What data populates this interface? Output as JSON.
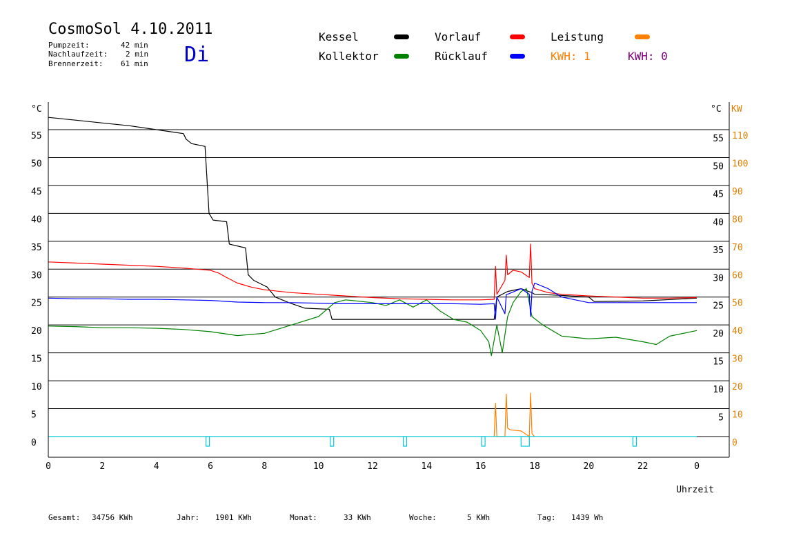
{
  "header": {
    "title": "CosmoSol 4.10.2011",
    "day": "Di",
    "stats": [
      {
        "label": "Pumpzeit:",
        "value": "42 min"
      },
      {
        "label": "Nachlaufzeit:",
        "value": "2 min"
      },
      {
        "label": "Brennerzeit:",
        "value": "61 min"
      }
    ]
  },
  "legend": {
    "items": [
      {
        "label": "Kessel",
        "color": "#000000"
      },
      {
        "label": "Kollektor",
        "color": "#008000"
      },
      {
        "label": "Vorlauf",
        "color": "#ff0000"
      },
      {
        "label": "Rücklauf",
        "color": "#0000ff"
      },
      {
        "label": "Leistung",
        "color": "#ff8000"
      }
    ],
    "kwh1": "KWH: 1",
    "kwh0": "KWH: 0",
    "kwh1_color": "#ff8000",
    "kwh0_color": "#800080"
  },
  "footer": {
    "items": [
      {
        "label": "Gesamt:",
        "value": "34756 KWh"
      },
      {
        "label": "Jahr:",
        "value": "1901 KWh"
      },
      {
        "label": "Monat:",
        "value": "33 KWh"
      },
      {
        "label": "Woche:",
        "value": "5 KWh"
      },
      {
        "label": "Tag:",
        "value": "1439 Wh"
      }
    ]
  },
  "chart_data": {
    "type": "line",
    "xlabel": "Uhrzeit",
    "ylabel_left": "°C",
    "ylabel_right_temp": "°C",
    "ylabel_right_power": "KW",
    "xlim": [
      0,
      24
    ],
    "ylim": [
      0,
      55
    ],
    "y2lim": [
      0,
      110
    ],
    "x_ticks": [
      "0",
      "2",
      "4",
      "6",
      "8",
      "10",
      "12",
      "14",
      "16",
      "18",
      "20",
      "22",
      "0"
    ],
    "y_ticks": [
      0,
      5,
      10,
      15,
      20,
      25,
      30,
      35,
      40,
      45,
      50,
      55
    ],
    "y2_ticks": [
      0,
      10,
      20,
      30,
      40,
      50,
      60,
      70,
      80,
      90,
      100,
      110
    ],
    "grid": true,
    "series": [
      {
        "name": "Kessel",
        "color": "#000000",
        "x": [
          0,
          1,
          2,
          3,
          4,
          5,
          5.1,
          5.3,
          5.8,
          5.95,
          6.1,
          6.6,
          6.7,
          7.3,
          7.4,
          7.6,
          8.1,
          8.4,
          8.9,
          9.5,
          10.4,
          10.5,
          12,
          14,
          16,
          16.5,
          16.6,
          17,
          17.5,
          17.9,
          18,
          19,
          20,
          20.2,
          22,
          24
        ],
        "y": [
          57.2,
          56.7,
          56.2,
          55.7,
          55.0,
          54.3,
          53.3,
          52.5,
          52.0,
          40,
          38.8,
          38.5,
          34.5,
          33.8,
          29,
          28,
          26.8,
          25.0,
          24.0,
          23.0,
          22.8,
          21.0,
          21.0,
          21.0,
          21.0,
          21.0,
          25.0,
          26.0,
          26.5,
          25.8,
          25.5,
          25.3,
          25.0,
          24.2,
          24.3,
          24.8
        ]
      },
      {
        "name": "Kollektor",
        "color": "#008000",
        "x": [
          0,
          1,
          2,
          3,
          4,
          5,
          6,
          7,
          8,
          9,
          10,
          10.6,
          11,
          12,
          12.5,
          13,
          13.5,
          14,
          14.5,
          15,
          15.5,
          16,
          16.3,
          16.4,
          16.6,
          16.8,
          17,
          17.2,
          17.5,
          17.7,
          17.9,
          18.3,
          19,
          20,
          21,
          22,
          22.5,
          23,
          24
        ],
        "y": [
          19.8,
          19.7,
          19.5,
          19.5,
          19.4,
          19.2,
          18.8,
          18.1,
          18.5,
          20.0,
          21.5,
          24.0,
          24.5,
          24.0,
          23.5,
          24.5,
          23.2,
          24.5,
          22.5,
          21.0,
          20.5,
          19.0,
          17.0,
          14.5,
          20.0,
          15.0,
          21.5,
          24.0,
          26.0,
          26.5,
          21.5,
          20.0,
          18.0,
          17.5,
          17.8,
          17.0,
          16.5,
          18.0,
          19.0
        ]
      },
      {
        "name": "Vorlauf",
        "color": "#ff0000",
        "x": [
          0,
          1,
          2,
          3,
          4,
          5,
          5.5,
          6,
          6.3,
          6.6,
          7,
          7.5,
          8,
          9,
          10,
          11,
          12,
          13,
          14,
          15,
          16,
          16.5,
          16.55,
          16.6,
          16.9,
          16.95,
          17,
          17.2,
          17.5,
          17.8,
          17.85,
          17.9,
          18,
          18.5,
          19,
          20,
          21,
          22,
          23,
          24
        ],
        "y": [
          31.3,
          31.1,
          30.9,
          30.7,
          30.5,
          30.2,
          30.0,
          29.8,
          29.3,
          28.5,
          27.5,
          26.8,
          26.3,
          25.8,
          25.5,
          25.2,
          24.9,
          24.7,
          24.6,
          24.5,
          24.5,
          24.6,
          30.5,
          25.5,
          28.0,
          32.5,
          29.0,
          29.8,
          29.5,
          28.5,
          34.5,
          27.5,
          26.5,
          25.8,
          25.5,
          25.2,
          25.0,
          24.8,
          24.8,
          24.9
        ]
      },
      {
        "name": "Rücklauf",
        "color": "#0000ff",
        "x": [
          0,
          1,
          2,
          3,
          4,
          5,
          6,
          7,
          8,
          9,
          10,
          11,
          12,
          13,
          14,
          15,
          16,
          16.5,
          16.55,
          16.6,
          16.9,
          16.95,
          17,
          17.5,
          17.8,
          17.85,
          17.9,
          18,
          18.5,
          19,
          20,
          21,
          22,
          23,
          24
        ],
        "y": [
          24.8,
          24.7,
          24.7,
          24.6,
          24.6,
          24.5,
          24.4,
          24.1,
          24.0,
          24.0,
          23.9,
          23.8,
          23.8,
          23.8,
          23.8,
          23.8,
          23.7,
          23.8,
          21.0,
          25.0,
          22.0,
          25.5,
          25.5,
          26.5,
          25.5,
          21.5,
          26.0,
          27.5,
          26.5,
          25.0,
          24.0,
          24.0,
          24.0,
          24.0,
          24.0
        ]
      },
      {
        "name": "Leistung",
        "color": "#ff8000",
        "x": [
          16.5,
          16.55,
          16.6,
          16.9,
          16.95,
          17.0,
          17.1,
          17.5,
          17.8,
          17.85,
          17.9,
          18.0
        ],
        "y": [
          0,
          6,
          0,
          0,
          7.6,
          1.5,
          1.2,
          1.0,
          0,
          7.8,
          0.5,
          0
        ]
      }
    ],
    "markers_x": [
      5.9,
      10.5,
      13.2,
      16.1,
      17.65,
      21.7
    ]
  }
}
